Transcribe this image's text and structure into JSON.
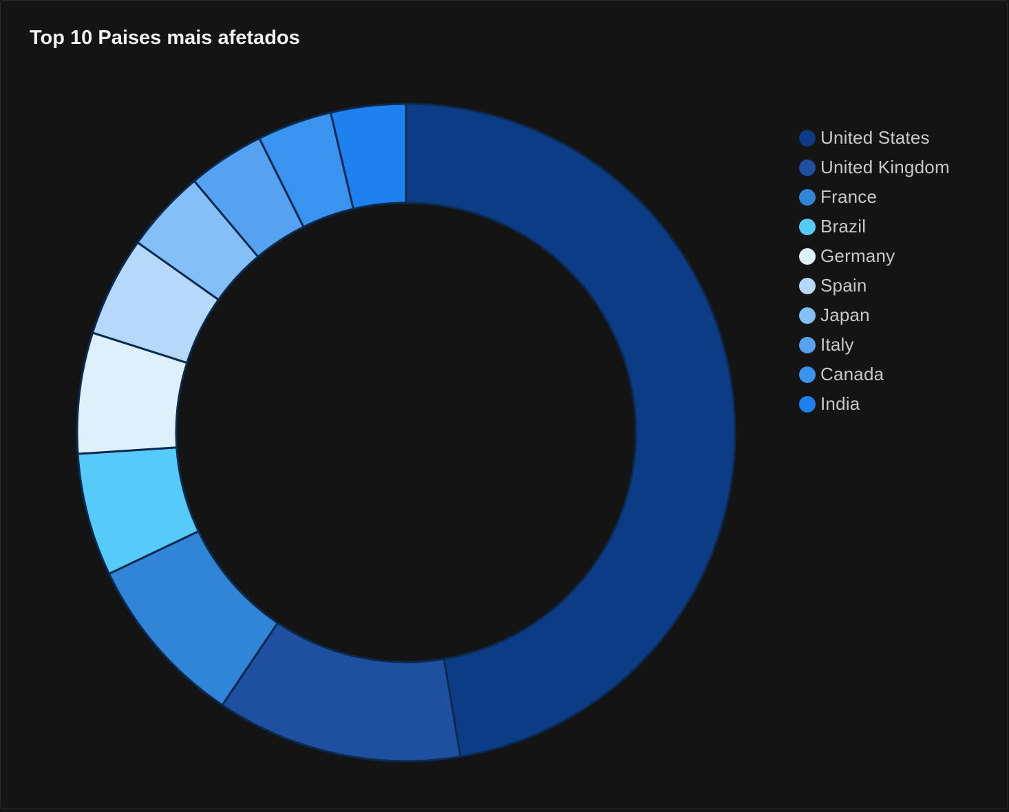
{
  "panel": {
    "title": "Top 10 Paises mais afetados"
  },
  "chart_data": {
    "type": "pie",
    "variant": "donut",
    "title": "Top 10 Paises mais afetados",
    "legend_position": "right",
    "categories": [
      "United States",
      "United Kingdom",
      "France",
      "Brazil",
      "Germany",
      "Spain",
      "Japan",
      "Italy",
      "Canada",
      "India"
    ],
    "values": [
      50.2,
      12.8,
      9.0,
      6.4,
      6.3,
      5.2,
      4.3,
      4.0,
      3.9,
      3.9
    ],
    "colors": [
      "#0d3c87",
      "#1f50a0",
      "#3085d6",
      "#56caf9",
      "#dff0fd",
      "#b6d8fa",
      "#84bff7",
      "#56a2f1",
      "#3a93ee",
      "#1f80ef"
    ],
    "border_color": "#0a2a4f",
    "start_angle_deg": 0
  }
}
